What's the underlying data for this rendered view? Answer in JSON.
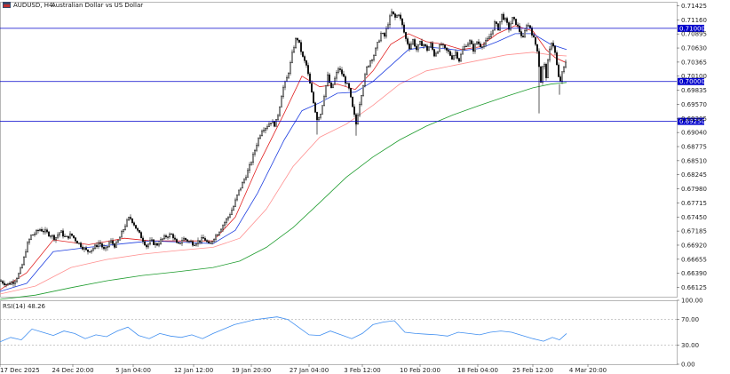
{
  "header": {
    "symbol": "AUDUSD, H4:",
    "description": "Australian Dollar vs US Dollar"
  },
  "chart_data": {
    "type": "candlestick",
    "price_ylim": [
      0.6595,
      0.715
    ],
    "price_ticks": [
      "0.71425",
      "0.71160",
      "0.70895",
      "0.70630",
      "0.70365",
      "0.70100",
      "0.69835",
      "0.69570",
      "0.69305",
      "0.69040",
      "0.68775",
      "0.68510",
      "0.68245",
      "0.67980",
      "0.67715",
      "0.67450",
      "0.67185",
      "0.66920",
      "0.66655",
      "0.66390",
      "0.66125"
    ],
    "x_labels": [
      "17 Dec 2025",
      "24 Dec 20:00",
      "5 Jan 04:00",
      "12 Jan 12:00",
      "19 Jan 20:00",
      "27 Jan 04:00",
      "3 Feb 12:00",
      "10 Feb 20:00",
      "18 Feb 04:00",
      "25 Feb 12:00",
      "4 Mar 20:00"
    ],
    "level_lines": [
      {
        "value": 0.71,
        "label": "0.71000",
        "color": "#0000cc"
      },
      {
        "value": 0.7,
        "label": "0.70000",
        "color": "#0000cc"
      },
      {
        "value": 0.6925,
        "label": "0.69250",
        "color": "#0000cc"
      }
    ],
    "close_path": [
      [
        0,
        0.6625
      ],
      [
        8,
        0.6618
      ],
      [
        16,
        0.6624
      ],
      [
        22,
        0.664
      ],
      [
        26,
        0.666
      ],
      [
        30,
        0.669
      ],
      [
        35,
        0.671
      ],
      [
        40,
        0.6715
      ],
      [
        45,
        0.6722
      ],
      [
        50,
        0.6718
      ],
      [
        56,
        0.6712
      ],
      [
        62,
        0.6705
      ],
      [
        68,
        0.6718
      ],
      [
        74,
        0.6705
      ],
      [
        80,
        0.6712
      ],
      [
        86,
        0.67
      ],
      [
        92,
        0.669
      ],
      [
        98,
        0.668
      ],
      [
        104,
        0.6685
      ],
      [
        108,
        0.669
      ],
      [
        112,
        0.6698
      ],
      [
        118,
        0.668
      ],
      [
        124,
        0.67
      ],
      [
        130,
        0.669
      ],
      [
        136,
        0.671
      ],
      [
        141,
        0.673
      ],
      [
        146,
        0.6745
      ],
      [
        150,
        0.6735
      ],
      [
        155,
        0.6718
      ],
      [
        160,
        0.6705
      ],
      [
        165,
        0.669
      ],
      [
        170,
        0.67
      ],
      [
        176,
        0.6692
      ],
      [
        182,
        0.6702
      ],
      [
        188,
        0.671
      ],
      [
        194,
        0.6712
      ],
      [
        200,
        0.669
      ],
      [
        206,
        0.6705
      ],
      [
        212,
        0.67
      ],
      [
        218,
        0.6695
      ],
      [
        224,
        0.67
      ],
      [
        230,
        0.6705
      ],
      [
        236,
        0.669
      ],
      [
        240,
        0.6705
      ],
      [
        244,
        0.6712
      ],
      [
        249,
        0.6725
      ],
      [
        253,
        0.6735
      ],
      [
        258,
        0.6748
      ],
      [
        263,
        0.6765
      ],
      [
        268,
        0.679
      ],
      [
        274,
        0.6812
      ],
      [
        280,
        0.6835
      ],
      [
        285,
        0.686
      ],
      [
        290,
        0.6888
      ],
      [
        295,
        0.691
      ],
      [
        300,
        0.6915
      ],
      [
        305,
        0.6925
      ],
      [
        310,
        0.6918
      ],
      [
        314,
        0.6945
      ],
      [
        318,
        0.6985
      ],
      [
        322,
        0.7
      ],
      [
        326,
        0.7025
      ],
      [
        330,
        0.706
      ],
      [
        334,
        0.7085
      ],
      [
        337,
        0.707
      ],
      [
        341,
        0.7045
      ],
      [
        345,
        0.703
      ],
      [
        349,
        0.6995
      ],
      [
        353,
        0.696
      ],
      [
        357,
        0.693
      ],
      [
        361,
        0.694
      ],
      [
        365,
        0.6975
      ],
      [
        369,
        0.701
      ],
      [
        373,
        0.6985
      ],
      [
        377,
        0.7005
      ],
      [
        381,
        0.7025
      ],
      [
        385,
        0.7015
      ],
      [
        389,
        0.7
      ],
      [
        393,
        0.6985
      ],
      [
        397,
        0.695
      ],
      [
        401,
        0.692
      ],
      [
        405,
        0.696
      ],
      [
        409,
        0.6995
      ],
      [
        413,
        0.7025
      ],
      [
        417,
        0.704
      ],
      [
        421,
        0.705
      ],
      [
        425,
        0.707
      ],
      [
        429,
        0.709
      ],
      [
        433,
        0.7085
      ],
      [
        437,
        0.711
      ],
      [
        441,
        0.713
      ],
      [
        445,
        0.712
      ],
      [
        449,
        0.7128
      ],
      [
        453,
        0.7105
      ],
      [
        457,
        0.708
      ],
      [
        461,
        0.7065
      ],
      [
        465,
        0.7078
      ],
      [
        469,
        0.706
      ],
      [
        473,
        0.7072
      ],
      [
        477,
        0.707
      ],
      [
        481,
        0.706
      ],
      [
        485,
        0.707
      ],
      [
        489,
        0.705
      ],
      [
        493,
        0.706
      ],
      [
        497,
        0.707
      ],
      [
        501,
        0.706
      ],
      [
        505,
        0.7055
      ],
      [
        509,
        0.7045
      ],
      [
        513,
        0.7055
      ],
      [
        517,
        0.704
      ],
      [
        521,
        0.706
      ],
      [
        525,
        0.707
      ],
      [
        529,
        0.7075
      ],
      [
        533,
        0.706
      ],
      [
        537,
        0.7075
      ],
      [
        541,
        0.7068
      ],
      [
        545,
        0.707
      ],
      [
        549,
        0.7078
      ],
      [
        553,
        0.709
      ],
      [
        557,
        0.711
      ],
      [
        561,
        0.71
      ],
      [
        565,
        0.7125
      ],
      [
        569,
        0.7115
      ],
      [
        573,
        0.71
      ],
      [
        577,
        0.7118
      ],
      [
        581,
        0.711
      ],
      [
        585,
        0.7095
      ],
      [
        589,
        0.708
      ],
      [
        593,
        0.7108
      ],
      [
        597,
        0.7102
      ],
      [
        601,
        0.708
      ],
      [
        605,
        0.706
      ],
      [
        609,
        0.7
      ],
      [
        612,
        0.704
      ],
      [
        615,
        0.701
      ],
      [
        618,
        0.705
      ],
      [
        621,
        0.7075
      ],
      [
        624,
        0.7065
      ],
      [
        627,
        0.703
      ],
      [
        630,
        0.6995
      ],
      [
        633,
        0.7015
      ],
      [
        636,
        0.703
      ],
      [
        638,
        0.7045
      ]
    ],
    "series": [
      {
        "color": "#e02020",
        "values": [
          [
            0,
            0.6608
          ],
          [
            30,
            0.664
          ],
          [
            60,
            0.6702
          ],
          [
            100,
            0.6693
          ],
          [
            140,
            0.6705
          ],
          [
            170,
            0.67
          ],
          [
            200,
            0.67
          ],
          [
            240,
            0.67
          ],
          [
            265,
            0.6745
          ],
          [
            290,
            0.684
          ],
          [
            320,
            0.694
          ],
          [
            340,
            0.701
          ],
          [
            360,
            0.699
          ],
          [
            380,
            0.6995
          ],
          [
            400,
            0.6985
          ],
          [
            420,
            0.702
          ],
          [
            440,
            0.707
          ],
          [
            460,
            0.709
          ],
          [
            480,
            0.7075
          ],
          [
            500,
            0.707
          ],
          [
            520,
            0.706
          ],
          [
            540,
            0.7065
          ],
          [
            560,
            0.709
          ],
          [
            580,
            0.7105
          ],
          [
            600,
            0.7095
          ],
          [
            615,
            0.706
          ],
          [
            625,
            0.7045
          ],
          [
            638,
            0.7035
          ]
        ]
      },
      {
        "color": "#1f3fe0",
        "values": [
          [
            0,
            0.6605
          ],
          [
            30,
            0.662
          ],
          [
            60,
            0.668
          ],
          [
            100,
            0.6688
          ],
          [
            140,
            0.6695
          ],
          [
            170,
            0.67
          ],
          [
            200,
            0.6698
          ],
          [
            240,
            0.6695
          ],
          [
            265,
            0.672
          ],
          [
            290,
            0.679
          ],
          [
            320,
            0.689
          ],
          [
            340,
            0.6945
          ],
          [
            360,
            0.696
          ],
          [
            380,
            0.6978
          ],
          [
            400,
            0.698
          ],
          [
            420,
            0.7
          ],
          [
            440,
            0.703
          ],
          [
            460,
            0.706
          ],
          [
            480,
            0.7065
          ],
          [
            500,
            0.7062
          ],
          [
            520,
            0.7058
          ],
          [
            540,
            0.7062
          ],
          [
            560,
            0.7075
          ],
          [
            580,
            0.709
          ],
          [
            600,
            0.709
          ],
          [
            620,
            0.707
          ],
          [
            638,
            0.706
          ]
        ]
      },
      {
        "color": "#ff9090",
        "values": [
          [
            0,
            0.66
          ],
          [
            40,
            0.6615
          ],
          [
            80,
            0.665
          ],
          [
            120,
            0.6665
          ],
          [
            160,
            0.6675
          ],
          [
            200,
            0.6682
          ],
          [
            240,
            0.6688
          ],
          [
            270,
            0.6705
          ],
          [
            300,
            0.676
          ],
          [
            330,
            0.684
          ],
          [
            360,
            0.6895
          ],
          [
            390,
            0.692
          ],
          [
            420,
            0.6955
          ],
          [
            450,
            0.6995
          ],
          [
            480,
            0.702
          ],
          [
            510,
            0.703
          ],
          [
            540,
            0.704
          ],
          [
            570,
            0.705
          ],
          [
            600,
            0.7055
          ],
          [
            620,
            0.705
          ],
          [
            638,
            0.7048
          ]
        ]
      },
      {
        "color": "#1e9c2e",
        "values": [
          [
            0,
            0.659
          ],
          [
            40,
            0.6598
          ],
          [
            80,
            0.6612
          ],
          [
            120,
            0.6625
          ],
          [
            160,
            0.6635
          ],
          [
            200,
            0.6642
          ],
          [
            240,
            0.665
          ],
          [
            270,
            0.6662
          ],
          [
            300,
            0.6688
          ],
          [
            330,
            0.6725
          ],
          [
            360,
            0.6772
          ],
          [
            390,
            0.682
          ],
          [
            420,
            0.6858
          ],
          [
            450,
            0.689
          ],
          [
            480,
            0.6916
          ],
          [
            510,
            0.6937
          ],
          [
            540,
            0.6955
          ],
          [
            570,
            0.6972
          ],
          [
            600,
            0.6988
          ],
          [
            620,
            0.6995
          ],
          [
            638,
            0.6998
          ]
        ]
      }
    ],
    "rsi": {
      "label": "RSI(14) 48.26",
      "ylim": [
        0,
        100
      ],
      "ticks": [
        "100.00",
        "70.00",
        "30.00",
        "0.00"
      ],
      "levels": [
        70,
        30
      ],
      "color": "#3f8ef0",
      "values": [
        [
          0,
          35
        ],
        [
          12,
          42
        ],
        [
          24,
          38
        ],
        [
          36,
          55
        ],
        [
          48,
          50
        ],
        [
          60,
          45
        ],
        [
          72,
          52
        ],
        [
          84,
          48
        ],
        [
          96,
          40
        ],
        [
          108,
          46
        ],
        [
          120,
          43
        ],
        [
          132,
          52
        ],
        [
          144,
          58
        ],
        [
          156,
          45
        ],
        [
          168,
          40
        ],
        [
          180,
          48
        ],
        [
          192,
          44
        ],
        [
          204,
          42
        ],
        [
          216,
          46
        ],
        [
          228,
          40
        ],
        [
          240,
          48
        ],
        [
          252,
          55
        ],
        [
          264,
          62
        ],
        [
          276,
          66
        ],
        [
          288,
          70
        ],
        [
          300,
          72
        ],
        [
          312,
          74
        ],
        [
          324,
          70
        ],
        [
          336,
          58
        ],
        [
          348,
          46
        ],
        [
          360,
          45
        ],
        [
          372,
          52
        ],
        [
          384,
          46
        ],
        [
          396,
          40
        ],
        [
          408,
          48
        ],
        [
          420,
          62
        ],
        [
          432,
          66
        ],
        [
          444,
          68
        ],
        [
          456,
          50
        ],
        [
          468,
          48
        ],
        [
          480,
          47
        ],
        [
          492,
          46
        ],
        [
          504,
          44
        ],
        [
          516,
          50
        ],
        [
          528,
          48
        ],
        [
          540,
          46
        ],
        [
          552,
          50
        ],
        [
          564,
          52
        ],
        [
          576,
          50
        ],
        [
          588,
          45
        ],
        [
          600,
          40
        ],
        [
          612,
          36
        ],
        [
          622,
          42
        ],
        [
          630,
          38
        ],
        [
          638,
          48
        ]
      ]
    }
  }
}
